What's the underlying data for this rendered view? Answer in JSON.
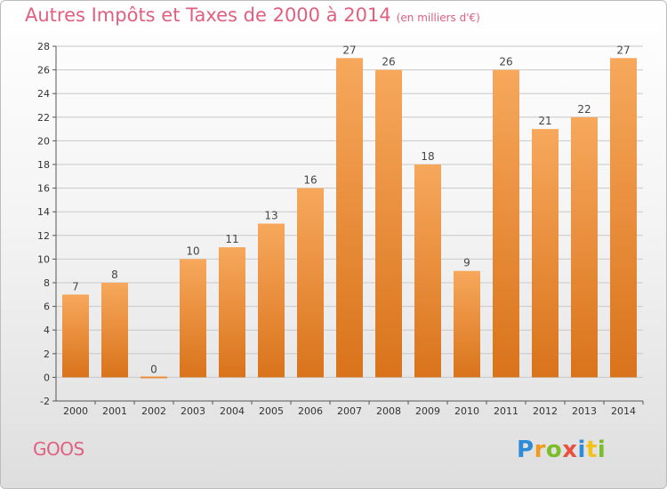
{
  "header": {
    "title": "Autres Impôts et Taxes de 2000 à 2014",
    "subtitle": "(en milliers d'€)"
  },
  "footer": {
    "city": "GOOS",
    "logo": [
      "P",
      "r",
      "o",
      "x",
      "i",
      "t",
      "i"
    ]
  },
  "colors": {
    "title": "#e06080",
    "bar_light": "#f7a85c",
    "bar_dark": "#d9731b",
    "grid": "#c8c8c8"
  },
  "chart_data": {
    "type": "bar",
    "title": "Autres Impôts et Taxes de 2000 à 2014",
    "subtitle": "(en milliers d'€)",
    "categories": [
      "2000",
      "2001",
      "2002",
      "2003",
      "2004",
      "2005",
      "2006",
      "2007",
      "2008",
      "2009",
      "2010",
      "2011",
      "2012",
      "2013",
      "2014"
    ],
    "values": [
      7,
      8,
      0,
      10,
      11,
      13,
      16,
      27,
      26,
      18,
      9,
      26,
      21,
      22,
      27
    ],
    "xlabel": "",
    "ylabel": "",
    "ylim": [
      -2,
      28
    ],
    "yticks": [
      -2,
      0,
      2,
      4,
      6,
      8,
      10,
      12,
      14,
      16,
      18,
      20,
      22,
      24,
      26,
      28
    ],
    "grid": true,
    "legend": "none"
  }
}
